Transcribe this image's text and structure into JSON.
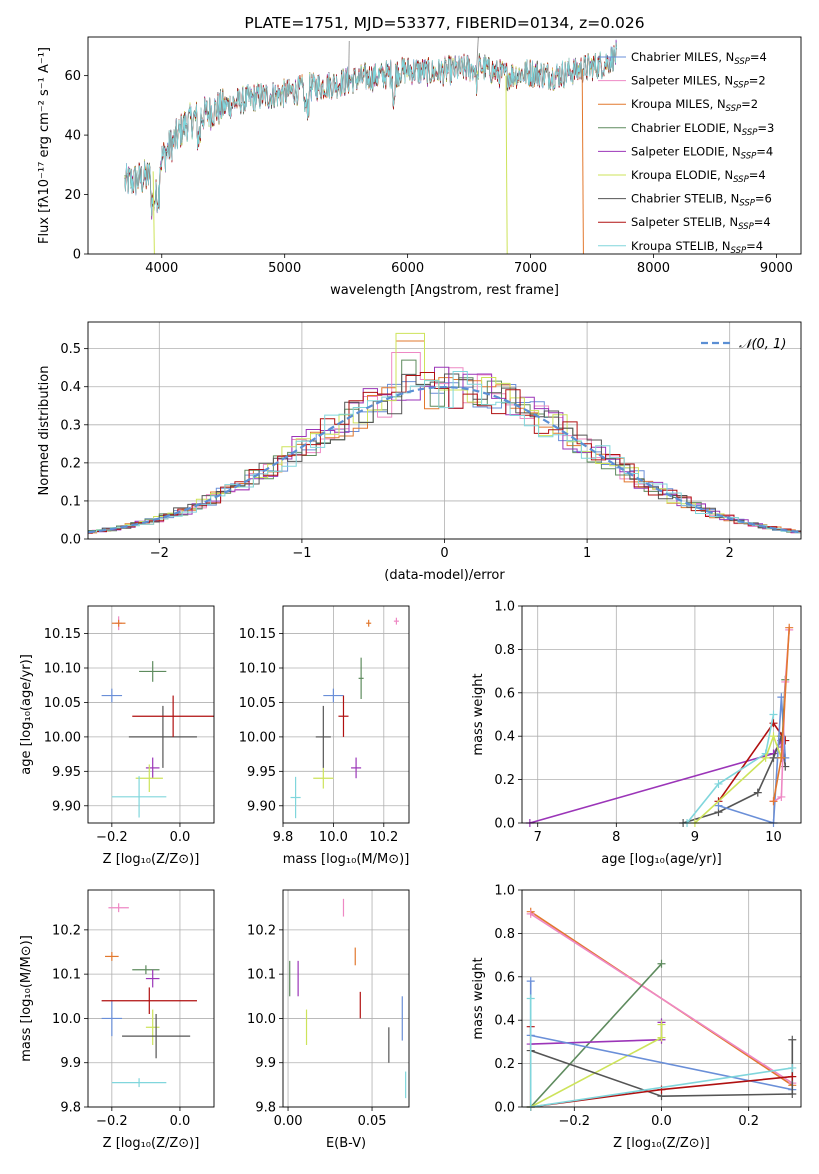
{
  "colors": {
    "chabrier_miles": "#6a8fd8",
    "salpeter_miles": "#ee88c4",
    "kroupa_miles": "#e2782e",
    "chabrier_elodie": "#5e8b5e",
    "salpeter_elodie": "#9b35b8",
    "kroupa_elodie": "#cde35a",
    "chabrier_stelib": "#555555",
    "salpeter_stelib": "#b01010",
    "kroupa_stelib": "#80d6dc",
    "normal_curve": "#5b8fd4",
    "grid": "#b0b0b0"
  },
  "chart_data": [
    {
      "id": "spectrum",
      "type": "line",
      "title": "PLATE=1751, MJD=53377, FIBERID=0134, z=0.026",
      "xlabel": "wavelength [Angstrom, rest frame]",
      "ylabel": "Flux [fλ10⁻¹⁷ erg cm⁻² s⁻¹ A⁻¹]",
      "xlim": [
        3400,
        9200
      ],
      "ylim": [
        0,
        73
      ],
      "xticks": [
        4000,
        5000,
        6000,
        7000,
        8000,
        9000
      ],
      "yticks": [
        0,
        20,
        40,
        60
      ],
      "grid": false,
      "legend_position": "right",
      "legend": [
        {
          "text": "Chabrier MILES, N",
          "sub": "SSP",
          "suffix": "=4",
          "color_key": "chabrier_miles"
        },
        {
          "text": "Salpeter MILES, N",
          "sub": "SSP",
          "suffix": "=2",
          "color_key": "salpeter_miles"
        },
        {
          "text": "Kroupa MILES, N",
          "sub": "SSP",
          "suffix": "=2",
          "color_key": "kroupa_miles"
        },
        {
          "text": "Chabrier ELODIE, N",
          "sub": "SSP",
          "suffix": "=3",
          "color_key": "chabrier_elodie"
        },
        {
          "text": "Salpeter ELODIE, N",
          "sub": "SSP",
          "suffix": "=4",
          "color_key": "salpeter_elodie"
        },
        {
          "text": "Kroupa ELODIE, N",
          "sub": "SSP",
          "suffix": "=4",
          "color_key": "kroupa_elodie"
        },
        {
          "text": "Chabrier STELIB, N",
          "sub": "SSP",
          "suffix": "=6",
          "color_key": "chabrier_stelib"
        },
        {
          "text": "Salpeter STELIB, N",
          "sub": "SSP",
          "suffix": "=4",
          "color_key": "salpeter_stelib"
        },
        {
          "text": "Kroupa STELIB, N",
          "sub": "SSP",
          "suffix": "=4",
          "color_key": "kroupa_stelib"
        }
      ],
      "continuum": [
        [
          3700,
          24
        ],
        [
          3900,
          26
        ],
        [
          4000,
          32
        ],
        [
          4200,
          44
        ],
        [
          4400,
          48
        ],
        [
          4600,
          51
        ],
        [
          4800,
          53
        ],
        [
          5000,
          54
        ],
        [
          5200,
          56
        ],
        [
          5400,
          57
        ],
        [
          5600,
          59
        ],
        [
          5800,
          60
        ],
        [
          6000,
          62
        ],
        [
          6200,
          61
        ],
        [
          6400,
          62
        ],
        [
          6600,
          63
        ],
        [
          6800,
          60
        ],
        [
          7000,
          61
        ],
        [
          7200,
          60
        ],
        [
          7400,
          62
        ],
        [
          7600,
          64
        ],
        [
          7700,
          67
        ]
      ],
      "dips": [
        {
          "x": 3930,
          "to": 0,
          "color_key": "kroupa_elodie"
        },
        {
          "x": 6800,
          "to": 0,
          "color_key": "kroupa_elodie"
        },
        {
          "x": 7420,
          "to": 0,
          "color_key": "kroupa_miles"
        }
      ]
    },
    {
      "id": "residuals",
      "type": "histogram",
      "xlabel": "(data-model)/error",
      "ylabel": "Normed distribution",
      "xlim": [
        -2.5,
        2.5
      ],
      "ylim": [
        0,
        0.57
      ],
      "xticks": [
        -2,
        -1,
        0,
        1,
        2
      ],
      "yticks": [
        0.0,
        0.1,
        0.2,
        0.3,
        0.4,
        0.5
      ],
      "grid": true,
      "legend_position": "top-right",
      "legend_label": "𝒩(0, 1)",
      "bin_width": 0.1,
      "peak_values": {
        "chabrier_elodie": 0.47,
        "kroupa_elodie": 0.54,
        "kroupa_miles": 0.52,
        "salpeter_miles": 0.49
      }
    },
    {
      "id": "age_vs_Z",
      "type": "errorbar",
      "xlabel": "Z [log₁₀(Z/Z⊙)]",
      "ylabel": "age  [log₁₀(age/yr)]",
      "xlim": [
        -0.27,
        0.1
      ],
      "ylim": [
        9.875,
        10.19
      ],
      "xticks": [
        -0.2,
        0.0
      ],
      "yticks": [
        9.9,
        9.95,
        10.0,
        10.05,
        10.1,
        10.15
      ],
      "grid": true,
      "points": [
        {
          "c": "chabrier_miles",
          "x": -0.2,
          "y": 10.06,
          "xe": 0.03,
          "ye": 0.01
        },
        {
          "c": "salpeter_miles",
          "x": -0.18,
          "y": 10.165,
          "xe": 0.01,
          "ye": 0.01
        },
        {
          "c": "kroupa_miles",
          "x": -0.18,
          "y": 10.165,
          "xe": 0.02,
          "ye": 0.005
        },
        {
          "c": "chabrier_elodie",
          "x": -0.08,
          "y": 10.095,
          "xe": 0.04,
          "ye": 0.015
        },
        {
          "c": "salpeter_elodie",
          "x": -0.08,
          "y": 9.955,
          "xe": 0.02,
          "ye": 0.015
        },
        {
          "c": "kroupa_elodie",
          "x": -0.09,
          "y": 9.94,
          "xe": 0.04,
          "ye": 0.02
        },
        {
          "c": "chabrier_stelib",
          "x": -0.05,
          "y": 10.0,
          "xe": 0.1,
          "ye": 0.045
        },
        {
          "c": "salpeter_stelib",
          "x": -0.02,
          "y": 10.03,
          "xe": 0.12,
          "ye": 0.03
        },
        {
          "c": "kroupa_stelib",
          "x": -0.12,
          "y": 9.913,
          "xe": 0.08,
          "ye": 0.03
        }
      ]
    },
    {
      "id": "age_vs_mass",
      "type": "errorbar",
      "xlabel": "mass [log₁₀(M/M⊙)]",
      "xlim": [
        9.8,
        10.3
      ],
      "ylim": [
        9.875,
        10.19
      ],
      "xticks": [
        9.8,
        10.0,
        10.2
      ],
      "yticks": [
        9.9,
        9.95,
        10.0,
        10.05,
        10.1,
        10.15
      ],
      "grid": true,
      "points": [
        {
          "c": "chabrier_miles",
          "x": 10.0,
          "y": 10.06,
          "xe": 0.04,
          "ye": 0.01
        },
        {
          "c": "salpeter_miles",
          "x": 10.25,
          "y": 10.168,
          "xe": 0.01,
          "ye": 0.005
        },
        {
          "c": "kroupa_miles",
          "x": 10.14,
          "y": 10.165,
          "xe": 0.01,
          "ye": 0.005
        },
        {
          "c": "chabrier_elodie",
          "x": 10.11,
          "y": 10.085,
          "xe": 0.01,
          "ye": 0.03
        },
        {
          "c": "salpeter_elodie",
          "x": 10.09,
          "y": 9.955,
          "xe": 0.02,
          "ye": 0.015
        },
        {
          "c": "kroupa_elodie",
          "x": 9.96,
          "y": 9.94,
          "xe": 0.04,
          "ye": 0.015
        },
        {
          "c": "chabrier_stelib",
          "x": 9.96,
          "y": 10.0,
          "xe": 0.03,
          "ye": 0.045
        },
        {
          "c": "salpeter_stelib",
          "x": 10.04,
          "y": 10.03,
          "xe": 0.02,
          "ye": 0.03
        },
        {
          "c": "kroupa_stelib",
          "x": 9.85,
          "y": 9.912,
          "xe": 0.02,
          "ye": 0.03
        }
      ]
    },
    {
      "id": "weight_vs_age",
      "type": "line",
      "xlabel": "age  [log₁₀(age/yr)]",
      "ylabel": "mass weight",
      "xlim": [
        6.8,
        10.35
      ],
      "ylim": [
        0,
        1.0
      ],
      "xticks": [
        7,
        8,
        9,
        10
      ],
      "yticks": [
        0.0,
        0.2,
        0.4,
        0.6,
        0.8,
        1.0
      ],
      "grid": true,
      "series": [
        {
          "c": "salpeter_elodie",
          "x": [
            6.9,
            10.0,
            10.1,
            10.1
          ],
          "y": [
            0.0,
            0.32,
            0.38,
            0.35
          ]
        },
        {
          "c": "chabrier_stelib",
          "x": [
            8.85,
            9.3,
            9.8,
            10.0,
            10.1,
            10.15
          ],
          "y": [
            0.0,
            0.05,
            0.14,
            0.3,
            0.4,
            0.26
          ]
        },
        {
          "c": "salpeter_stelib",
          "x": [
            9.3,
            10.0,
            10.15
          ],
          "y": [
            0.1,
            0.46,
            0.38
          ]
        },
        {
          "c": "kroupa_stelib",
          "x": [
            8.9,
            9.3,
            9.9,
            10.0
          ],
          "y": [
            0.0,
            0.18,
            0.32,
            0.5
          ]
        },
        {
          "c": "chabrier_miles",
          "x": [
            9.3,
            10.0,
            10.1,
            10.15
          ],
          "y": [
            0.08,
            0.0,
            0.58,
            0.3
          ]
        },
        {
          "c": "kroupa_elodie",
          "x": [
            9.0,
            9.9,
            10.0,
            10.1
          ],
          "y": [
            0.0,
            0.3,
            0.4,
            0.3
          ]
        },
        {
          "c": "chabrier_elodie",
          "x": [
            10.1,
            10.15
          ],
          "y": [
            0.3,
            0.66
          ]
        },
        {
          "c": "salpeter_miles",
          "x": [
            10.0,
            10.1,
            10.15,
            10.2
          ],
          "y": [
            0.1,
            0.12,
            0.65,
            0.89
          ]
        },
        {
          "c": "kroupa_miles",
          "x": [
            10.0,
            10.1,
            10.2
          ],
          "y": [
            0.1,
            0.3,
            0.9
          ]
        }
      ]
    },
    {
      "id": "mass_vs_Z",
      "type": "errorbar",
      "xlabel": "Z [log₁₀(Z/Z⊙)]",
      "ylabel": "mass [log₁₀(M/M⊙)]",
      "xlim": [
        -0.27,
        0.1
      ],
      "ylim": [
        9.8,
        10.29
      ],
      "xticks": [
        -0.2,
        0.0
      ],
      "yticks": [
        9.8,
        9.9,
        10.0,
        10.1,
        10.2
      ],
      "grid": true,
      "points": [
        {
          "c": "chabrier_miles",
          "x": -0.2,
          "y": 10.0,
          "xe": 0.03,
          "ye": 0.04
        },
        {
          "c": "salpeter_miles",
          "x": -0.18,
          "y": 10.25,
          "xe": 0.03,
          "ye": 0.01
        },
        {
          "c": "kroupa_miles",
          "x": -0.2,
          "y": 10.14,
          "xe": 0.02,
          "ye": 0.01
        },
        {
          "c": "chabrier_elodie",
          "x": -0.1,
          "y": 10.11,
          "xe": 0.04,
          "ye": 0.01
        },
        {
          "c": "salpeter_elodie",
          "x": -0.08,
          "y": 10.09,
          "xe": 0.02,
          "ye": 0.02
        },
        {
          "c": "kroupa_elodie",
          "x": -0.08,
          "y": 9.98,
          "xe": 0.02,
          "ye": 0.04
        },
        {
          "c": "chabrier_stelib",
          "x": -0.07,
          "y": 9.96,
          "xe": 0.1,
          "ye": 0.05
        },
        {
          "c": "salpeter_stelib",
          "x": -0.09,
          "y": 10.04,
          "xe": 0.14,
          "ye": 0.03
        },
        {
          "c": "kroupa_stelib",
          "x": -0.12,
          "y": 9.855,
          "xe": 0.08,
          "ye": 0.01
        }
      ]
    },
    {
      "id": "mass_vs_ebv",
      "type": "errorbar",
      "xlabel": "E(B-V)",
      "xlim": [
        -0.003,
        0.072
      ],
      "ylim": [
        9.8,
        10.29
      ],
      "xticks": [
        0.0,
        0.05
      ],
      "yticks": [
        9.8,
        9.9,
        10.0,
        10.1,
        10.2
      ],
      "grid": true,
      "points": [
        {
          "c": "chabrier_miles",
          "x": 0.068,
          "y": 10.0,
          "xe": 0,
          "ye": 0.05
        },
        {
          "c": "salpeter_miles",
          "x": 0.033,
          "y": 10.25,
          "xe": 0,
          "ye": 0.02
        },
        {
          "c": "kroupa_miles",
          "x": 0.04,
          "y": 10.14,
          "xe": 0,
          "ye": 0.02
        },
        {
          "c": "chabrier_elodie",
          "x": 0.001,
          "y": 10.09,
          "xe": 0,
          "ye": 0.04
        },
        {
          "c": "salpeter_elodie",
          "x": 0.006,
          "y": 10.09,
          "xe": 0,
          "ye": 0.04
        },
        {
          "c": "kroupa_elodie",
          "x": 0.011,
          "y": 9.98,
          "xe": 0,
          "ye": 0.04
        },
        {
          "c": "chabrier_stelib",
          "x": 0.06,
          "y": 9.94,
          "xe": 0,
          "ye": 0.04
        },
        {
          "c": "salpeter_stelib",
          "x": 0.043,
          "y": 10.03,
          "xe": 0,
          "ye": 0.03
        },
        {
          "c": "kroupa_stelib",
          "x": 0.07,
          "y": 9.85,
          "xe": 0,
          "ye": 0.03
        }
      ]
    },
    {
      "id": "weight_vs_Z",
      "type": "line",
      "xlabel": "Z [log₁₀(Z/Z⊙)]",
      "ylabel": "mass weight",
      "xlim": [
        -0.32,
        0.32
      ],
      "ylim": [
        0,
        1.0
      ],
      "xticks": [
        -0.2,
        0.0,
        0.2
      ],
      "yticks": [
        0.0,
        0.2,
        0.4,
        0.6,
        0.8,
        1.0
      ],
      "grid": true,
      "series": [
        {
          "c": "kroupa_miles",
          "x": [
            -0.3,
            0.3
          ],
          "y": [
            0.9,
            0.1
          ]
        },
        {
          "c": "salpeter_miles",
          "x": [
            -0.3,
            0.3
          ],
          "y": [
            0.89,
            0.11
          ]
        },
        {
          "c": "chabrier_elodie",
          "x": [
            -0.3,
            0.0
          ],
          "y": [
            0.0,
            0.66
          ]
        },
        {
          "c": "salpeter_elodie",
          "x": [
            -0.3,
            0.0,
            0.0
          ],
          "y": [
            0.29,
            0.31,
            0.39
          ]
        },
        {
          "c": "kroupa_elodie",
          "x": [
            -0.3,
            0.0,
            0.0
          ],
          "y": [
            0.0,
            0.32,
            0.38
          ]
        },
        {
          "c": "chabrier_miles",
          "x": [
            -0.3,
            -0.3,
            0.3
          ],
          "y": [
            0.58,
            0.33,
            0.08
          ]
        },
        {
          "c": "chabrier_stelib",
          "x": [
            -0.3,
            0.0,
            0.3,
            0.3
          ],
          "y": [
            0.26,
            0.05,
            0.06,
            0.31
          ]
        },
        {
          "c": "salpeter_stelib",
          "x": [
            -0.3,
            -0.3,
            0.0,
            0.3
          ],
          "y": [
            0.37,
            0.0,
            0.08,
            0.14
          ]
        },
        {
          "c": "kroupa_stelib",
          "x": [
            -0.3,
            -0.3,
            0.3
          ],
          "y": [
            0.5,
            0.0,
            0.18
          ]
        }
      ]
    }
  ]
}
